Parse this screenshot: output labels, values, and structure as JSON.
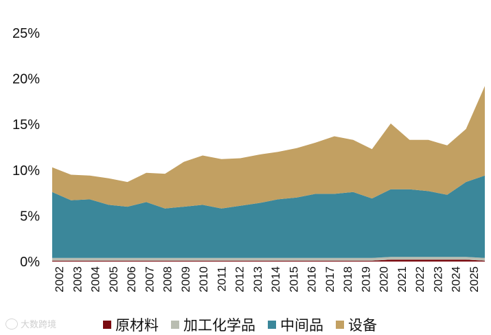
{
  "chart_data": {
    "type": "area",
    "stacked": true,
    "x_start": "2002-01",
    "x_end": "2025-09",
    "x_tick_labels": [
      "2002",
      "2003",
      "2004",
      "2005",
      "2006",
      "2007",
      "2008",
      "2009",
      "2010",
      "2011",
      "2012",
      "2013",
      "2014",
      "2015",
      "2016",
      "2017",
      "2018",
      "2019",
      "2020",
      "2021",
      "2022",
      "2023",
      "2024",
      "2025"
    ],
    "y_tick_labels": [
      "0%",
      "5%",
      "10%",
      "15%",
      "20%",
      "25%"
    ],
    "ylim": [
      0,
      25
    ],
    "unit": "%",
    "legend_position": "bottom",
    "series": [
      {
        "name": "原材料",
        "color": "#7a0a10",
        "values": [
          0.1,
          0.1,
          0.1,
          0.1,
          0.1,
          0.1,
          0.1,
          0.1,
          0.1,
          0.1,
          0.1,
          0.1,
          0.1,
          0.1,
          0.1,
          0.1,
          0.1,
          0.1,
          0.2,
          0.2,
          0.2,
          0.2,
          0.2,
          0.1
        ]
      },
      {
        "name": "加工化学品",
        "color": "#b9bdb1",
        "values": [
          0.3,
          0.3,
          0.3,
          0.3,
          0.3,
          0.3,
          0.3,
          0.3,
          0.3,
          0.3,
          0.3,
          0.3,
          0.3,
          0.3,
          0.3,
          0.3,
          0.3,
          0.3,
          0.3,
          0.3,
          0.3,
          0.3,
          0.3,
          0.3
        ]
      },
      {
        "name": "中间品",
        "color": "#3b879a",
        "values": [
          7.2,
          6.3,
          6.4,
          5.8,
          5.6,
          6.1,
          5.4,
          5.6,
          5.8,
          5.4,
          5.7,
          6.0,
          6.4,
          6.6,
          7.0,
          7.0,
          7.2,
          6.5,
          7.4,
          7.4,
          7.2,
          6.8,
          8.2,
          9.0
        ]
      },
      {
        "name": "设备",
        "color": "#c2a062",
        "values": [
          2.7,
          2.8,
          2.6,
          2.9,
          2.7,
          3.2,
          3.8,
          4.9,
          5.4,
          5.4,
          5.2,
          5.3,
          5.2,
          5.4,
          5.6,
          6.3,
          5.7,
          5.4,
          7.2,
          5.4,
          5.6,
          5.4,
          5.8,
          9.8
        ]
      }
    ]
  },
  "watermark": "大数跨境"
}
